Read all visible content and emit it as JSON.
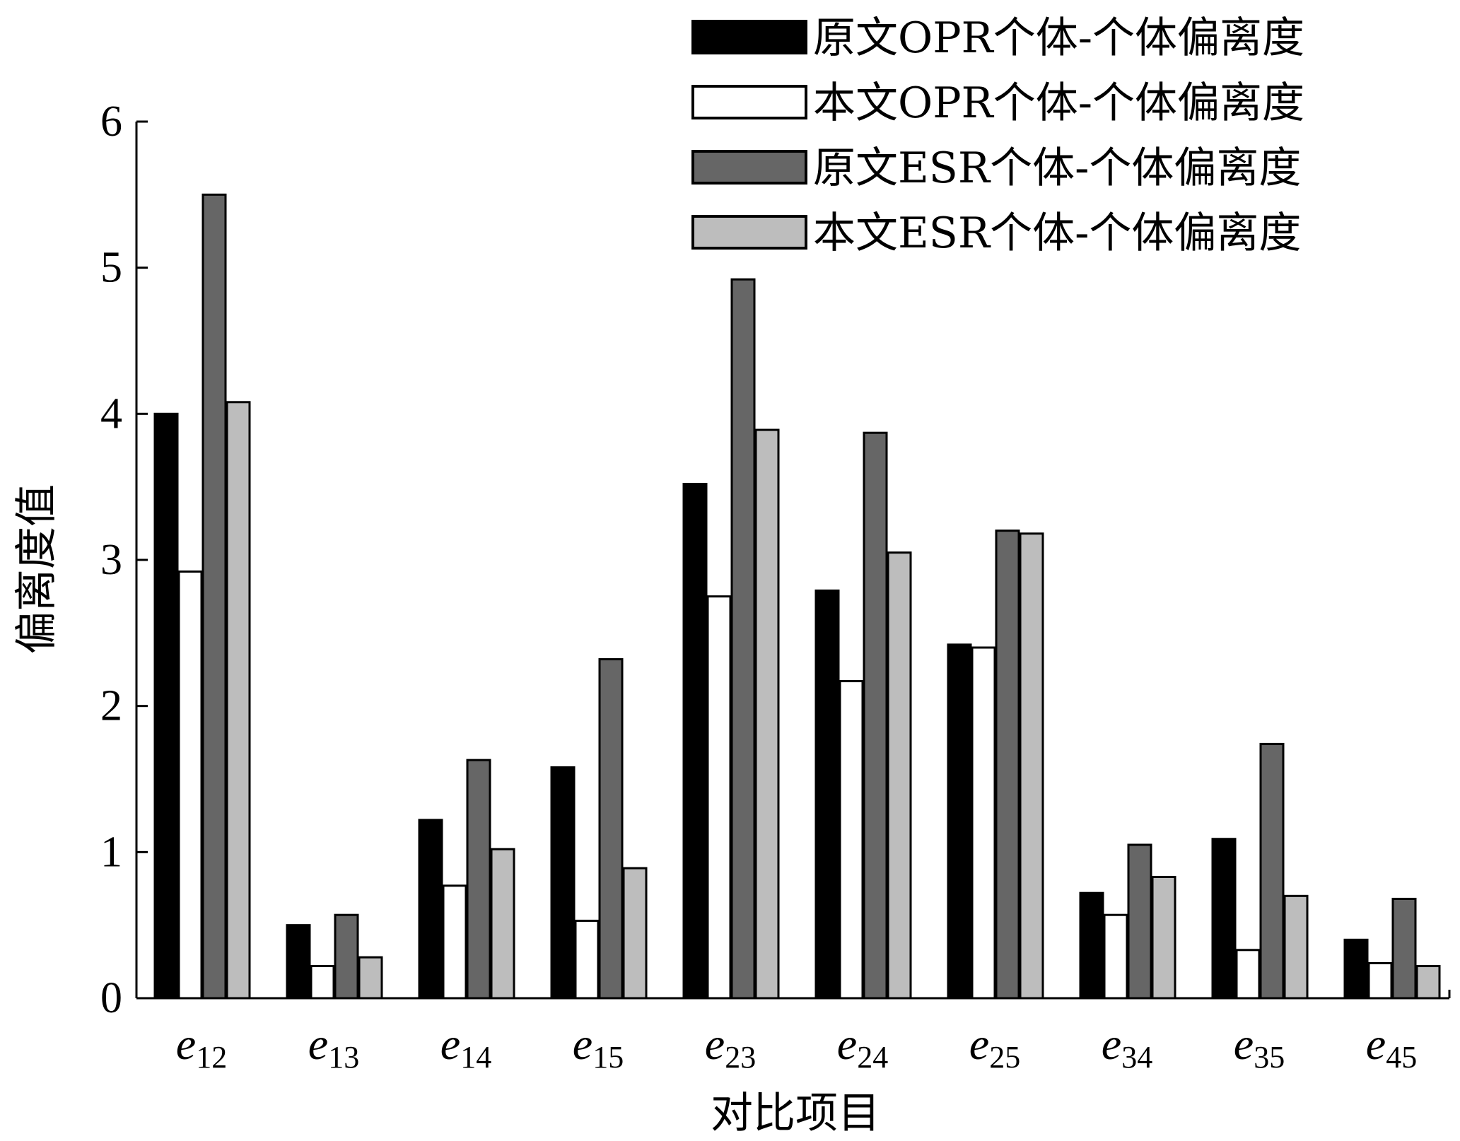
{
  "chart_data": {
    "type": "bar",
    "title": "",
    "xlabel": "对比项目",
    "ylabel": "偏离度值",
    "ylim": [
      0,
      6
    ],
    "yticks": [
      "0",
      "1",
      "2",
      "3",
      "4",
      "5",
      "6"
    ],
    "categories": [
      {
        "base": "e",
        "sub": "12"
      },
      {
        "base": "e",
        "sub": "13"
      },
      {
        "base": "e",
        "sub": "14"
      },
      {
        "base": "e",
        "sub": "15"
      },
      {
        "base": "e",
        "sub": "23"
      },
      {
        "base": "e",
        "sub": "24"
      },
      {
        "base": "e",
        "sub": "25"
      },
      {
        "base": "e",
        "sub": "34"
      },
      {
        "base": "e",
        "sub": "35"
      },
      {
        "base": "e",
        "sub": "45"
      }
    ],
    "legend_position": "top-right",
    "grid": false,
    "series": [
      {
        "name": "原文OPR个体-个体偏离度",
        "color": "#000000",
        "values": [
          4.0,
          0.5,
          1.22,
          1.58,
          3.52,
          2.79,
          2.42,
          0.72,
          1.09,
          0.4
        ]
      },
      {
        "name": "本文OPR个体-个体偏离度",
        "color": "#ffffff",
        "values": [
          2.92,
          0.22,
          0.77,
          0.53,
          2.75,
          2.17,
          2.4,
          0.57,
          0.33,
          0.24
        ]
      },
      {
        "name": "原文ESR个体-个体偏离度",
        "color": "#666666",
        "values": [
          5.5,
          0.57,
          1.63,
          2.32,
          4.92,
          3.87,
          3.2,
          1.05,
          1.74,
          0.68
        ]
      },
      {
        "name": "本文ESR个体-个体偏离度",
        "color": "#bdbdbd",
        "values": [
          4.08,
          0.28,
          1.02,
          0.89,
          3.89,
          3.05,
          3.18,
          0.83,
          0.7,
          0.22
        ]
      }
    ]
  }
}
